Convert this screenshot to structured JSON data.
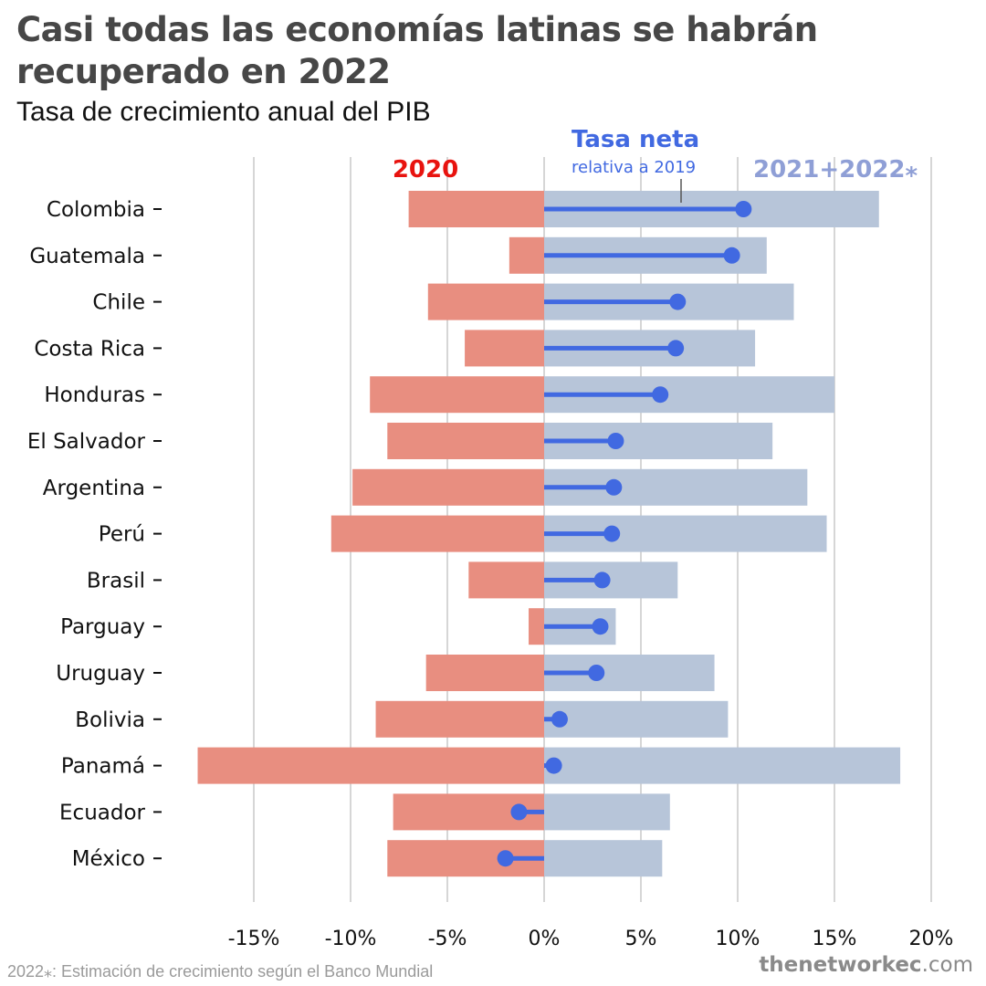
{
  "header": {
    "title_line1": "Casi todas las economías latinas se habrán",
    "title_line2": "recuperado en 2022",
    "subtitle": "Tasa de crecimiento anual del PIB"
  },
  "footer": {
    "footnote": "2022⁎: Estimación de crecimiento según el Banco Mundial",
    "brand_bold": "thenetworkec",
    "brand_rest": ".com"
  },
  "colors": {
    "bar_2020": "#e88e80",
    "bar_2021_2022": "#b7c5d9",
    "net_line": "#4169e1",
    "grid": "#d6d6d6"
  },
  "chart_data": {
    "type": "bar",
    "orientation": "horizontal",
    "title": "Casi todas las economías latinas se habrán recuperado en 2022",
    "subtitle": "Tasa de crecimiento anual del PIB",
    "categories": [
      "Colombia",
      "Guatemala",
      "Chile",
      "Costa Rica",
      "Honduras",
      "El Salvador",
      "Argentina",
      "Perú",
      "Brasil",
      "Parguay",
      "Uruguay",
      "Bolivia",
      "Panamá",
      "Ecuador",
      "México"
    ],
    "series": [
      {
        "name": "2020",
        "values": [
          -7.0,
          -1.8,
          -6.0,
          -4.1,
          -9.0,
          -8.1,
          -9.9,
          -11.0,
          -3.9,
          -0.8,
          -6.1,
          -8.7,
          -17.9,
          -7.8,
          -8.1
        ]
      },
      {
        "name": "2021+2022⁎",
        "values": [
          17.3,
          11.5,
          12.9,
          10.9,
          15.0,
          11.8,
          13.6,
          14.6,
          6.9,
          3.7,
          8.8,
          9.5,
          18.4,
          6.5,
          6.1
        ]
      },
      {
        "name": "Tasa neta",
        "values": [
          10.3,
          9.7,
          6.9,
          6.8,
          6.0,
          3.7,
          3.6,
          3.5,
          3.0,
          2.9,
          2.7,
          0.8,
          0.5,
          -1.3,
          -2.0
        ]
      }
    ],
    "annotations": {
      "label_2020": "2020",
      "label_net": "Tasa neta",
      "label_net_sub": "relativa a 2019",
      "label_2122": "2021+2022⁎"
    },
    "xlim": [
      -18,
      20
    ],
    "xticks": [
      -15,
      -10,
      -5,
      0,
      5,
      10,
      15,
      20
    ],
    "xtick_labels": [
      "-15%",
      "-10%",
      "-5%",
      "0%",
      "5%",
      "10%",
      "15%",
      "20%"
    ],
    "grid": true
  }
}
